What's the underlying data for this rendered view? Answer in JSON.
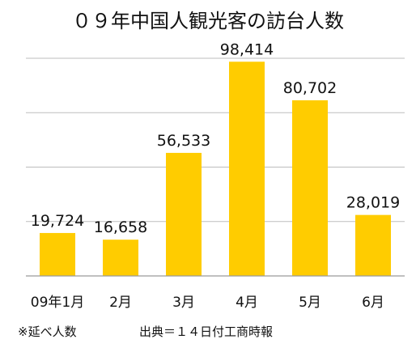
{
  "chart_data": {
    "type": "bar",
    "title": "０９年中国人観光客の訪台人数",
    "categories": [
      "09年1月",
      "2月",
      "3月",
      "4月",
      "5月",
      "6月"
    ],
    "values": [
      19724,
      16658,
      56533,
      98414,
      80702,
      28019
    ],
    "data_labels": [
      "19,724",
      "16,658",
      "56,533",
      "98,414",
      "80,702",
      "28,019"
    ],
    "ylim": [
      0,
      100000
    ],
    "grid": true,
    "legend": "none",
    "bar_color": "#FFCC00"
  },
  "notes": {
    "left": "※延べ人数",
    "right": "出典＝１４日付工商時報"
  }
}
